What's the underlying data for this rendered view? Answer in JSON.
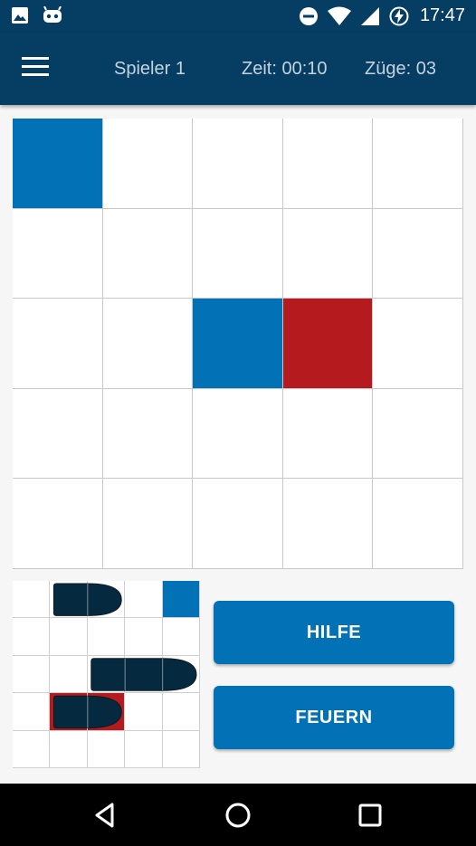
{
  "status_bar": {
    "left_icons": [
      "image-icon",
      "android-icon"
    ],
    "right_icons": [
      "do-not-disturb-icon",
      "wifi-icon",
      "signal-icon",
      "battery-charging-icon"
    ],
    "time": "17:47"
  },
  "app_bar": {
    "menu_icon": "hamburger-menu-icon",
    "player": "Spieler 1",
    "time": "Zeit: 00:10",
    "moves": "Züge: 03"
  },
  "board": {
    "rows": 5,
    "cols": 5,
    "cells": [
      [
        "miss",
        "",
        "",
        "",
        ""
      ],
      [
        "",
        "",
        "",
        "",
        ""
      ],
      [
        "",
        "",
        "miss",
        "hit",
        ""
      ],
      [
        "",
        "",
        "",
        "",
        ""
      ],
      [
        "",
        "",
        "",
        "",
        ""
      ]
    ],
    "colors": {
      "miss": "#0271b5",
      "hit": "#b51b1e"
    }
  },
  "own_board": {
    "rows": 5,
    "cols": 5,
    "cells": [
      [
        "",
        "",
        "",
        "",
        "miss"
      ],
      [
        "",
        "",
        "",
        "",
        ""
      ],
      [
        "",
        "",
        "",
        "",
        ""
      ],
      [
        "",
        "hit",
        "hit",
        "",
        ""
      ],
      [
        "",
        "",
        "",
        "",
        ""
      ]
    ],
    "ships": [
      {
        "row": 0,
        "col": 1,
        "length": 2
      },
      {
        "row": 2,
        "col": 2,
        "length": 3
      },
      {
        "row": 3,
        "col": 1,
        "length": 2
      }
    ],
    "ship_color": "#052a3f"
  },
  "buttons": {
    "help": "HILFE",
    "fire": "FEUERN"
  },
  "nav_bar": {
    "icons": [
      "back-icon",
      "home-icon",
      "recents-icon"
    ]
  }
}
